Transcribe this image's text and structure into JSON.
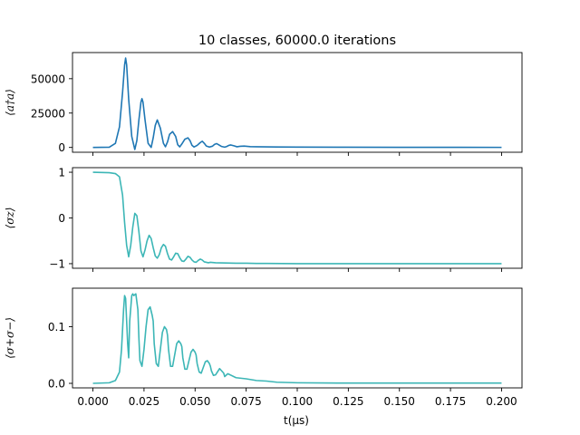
{
  "chart_data": {
    "type": "line",
    "title": "10 classes, 60000.0 iterations",
    "xlabel": "t(μs)",
    "xlim": [
      -0.01,
      0.21
    ],
    "xticks": [
      "0.000",
      "0.025",
      "0.050",
      "0.075",
      "0.100",
      "0.125",
      "0.150",
      "0.175",
      "0.200"
    ],
    "xtick_values": [
      0,
      0.025,
      0.05,
      0.075,
      0.1,
      0.125,
      0.15,
      0.175,
      0.2
    ],
    "grid": false,
    "panels": [
      {
        "ylabel": "⟨a†a⟩",
        "ylim": [
          -3500,
          69000
        ],
        "yticks": [
          "0",
          "25000",
          "50000"
        ],
        "ytick_values": [
          0,
          25000,
          50000
        ],
        "color": "#1f77b4",
        "series": {
          "x": [
            0,
            0.008,
            0.011,
            0.013,
            0.0145,
            0.0155,
            0.016,
            0.0165,
            0.0175,
            0.019,
            0.0205,
            0.0215,
            0.0225,
            0.0235,
            0.024,
            0.0245,
            0.0255,
            0.027,
            0.0285,
            0.0295,
            0.0305,
            0.0315,
            0.033,
            0.0345,
            0.0355,
            0.0365,
            0.0375,
            0.039,
            0.0405,
            0.0415,
            0.0425,
            0.0435,
            0.045,
            0.0465,
            0.0475,
            0.0485,
            0.0495,
            0.051,
            0.0525,
            0.0535,
            0.0545,
            0.0555,
            0.057,
            0.0585,
            0.0595,
            0.0605,
            0.0615,
            0.063,
            0.0645,
            0.0655,
            0.0665,
            0.0675,
            0.069,
            0.0705,
            0.072,
            0.074,
            0.077,
            0.08,
            0.085,
            0.09,
            0.1,
            0.12,
            0.15,
            0.2
          ],
          "y": [
            0,
            200,
            3000,
            15000,
            40000,
            60000,
            65000,
            60000,
            35000,
            8000,
            -1500,
            5000,
            20000,
            33000,
            35500,
            33000,
            20000,
            3000,
            0,
            7000,
            16000,
            20000,
            14000,
            3000,
            500,
            4000,
            9500,
            11500,
            8000,
            2000,
            400,
            2500,
            6000,
            7000,
            5000,
            1500,
            300,
            1500,
            3500,
            4500,
            3000,
            1000,
            300,
            900,
            2200,
            2800,
            2000,
            700,
            200,
            700,
            1500,
            1800,
            1200,
            500,
            800,
            1000,
            600,
            500,
            400,
            350,
            250,
            150,
            80,
            40
          ]
        }
      },
      {
        "ylabel": "⟨σz⟩",
        "ylim": [
          -1.1,
          1.1
        ],
        "yticks": [
          "−1",
          "0",
          "1"
        ],
        "ytick_values": [
          -1,
          0,
          1
        ],
        "color": "#3cb6b6",
        "series": {
          "x": [
            0,
            0.008,
            0.011,
            0.013,
            0.0145,
            0.0155,
            0.0165,
            0.0175,
            0.0185,
            0.0195,
            0.0205,
            0.0215,
            0.0225,
            0.0235,
            0.0245,
            0.0255,
            0.0265,
            0.0275,
            0.0285,
            0.0295,
            0.0305,
            0.0315,
            0.0325,
            0.0335,
            0.0345,
            0.0355,
            0.0365,
            0.0375,
            0.0385,
            0.0395,
            0.0405,
            0.0415,
            0.0425,
            0.0435,
            0.0445,
            0.0455,
            0.0465,
            0.0475,
            0.0485,
            0.0495,
            0.0505,
            0.0515,
            0.0525,
            0.0535,
            0.0545,
            0.0555,
            0.0565,
            0.0575,
            0.06,
            0.065,
            0.07,
            0.075,
            0.08,
            0.085,
            0.1,
            0.15,
            0.2
          ],
          "y": [
            1.0,
            0.99,
            0.97,
            0.9,
            0.5,
            -0.1,
            -0.6,
            -0.85,
            -0.6,
            -0.2,
            0.1,
            0.05,
            -0.3,
            -0.72,
            -0.85,
            -0.7,
            -0.5,
            -0.38,
            -0.45,
            -0.65,
            -0.83,
            -0.88,
            -0.8,
            -0.65,
            -0.58,
            -0.62,
            -0.78,
            -0.9,
            -0.92,
            -0.85,
            -0.77,
            -0.78,
            -0.87,
            -0.94,
            -0.95,
            -0.9,
            -0.84,
            -0.86,
            -0.92,
            -0.96,
            -0.97,
            -0.93,
            -0.9,
            -0.92,
            -0.96,
            -0.97,
            -0.98,
            -0.97,
            -0.98,
            -0.985,
            -0.99,
            -0.99,
            -0.995,
            -0.995,
            -1.0,
            -1.0,
            -1.0
          ]
        }
      },
      {
        "ylabel": "⟨σ+σ−⟩",
        "ylim": [
          -0.008,
          0.168
        ],
        "yticks": [
          "0.0",
          "0.1"
        ],
        "ytick_values": [
          0,
          0.1
        ],
        "color": "#3cb6b6",
        "series": {
          "x": [
            0,
            0.008,
            0.011,
            0.013,
            0.014,
            0.015,
            0.0155,
            0.016,
            0.017,
            0.0175,
            0.018,
            0.019,
            0.0195,
            0.02,
            0.021,
            0.022,
            0.0225,
            0.023,
            0.024,
            0.025,
            0.026,
            0.027,
            0.028,
            0.029,
            0.0295,
            0.03,
            0.031,
            0.032,
            0.033,
            0.034,
            0.035,
            0.036,
            0.0365,
            0.037,
            0.038,
            0.039,
            0.04,
            0.041,
            0.042,
            0.043,
            0.0435,
            0.044,
            0.045,
            0.046,
            0.047,
            0.048,
            0.049,
            0.05,
            0.0505,
            0.051,
            0.052,
            0.053,
            0.054,
            0.055,
            0.056,
            0.057,
            0.0575,
            0.058,
            0.059,
            0.06,
            0.062,
            0.064,
            0.0645,
            0.066,
            0.07,
            0.075,
            0.08,
            0.085,
            0.09,
            0.1,
            0.12,
            0.2
          ],
          "y": [
            0,
            0.001,
            0.005,
            0.02,
            0.06,
            0.13,
            0.155,
            0.15,
            0.07,
            0.045,
            0.11,
            0.155,
            0.158,
            0.155,
            0.158,
            0.13,
            0.08,
            0.04,
            0.03,
            0.06,
            0.1,
            0.13,
            0.135,
            0.12,
            0.11,
            0.07,
            0.035,
            0.03,
            0.06,
            0.09,
            0.1,
            0.095,
            0.085,
            0.06,
            0.03,
            0.03,
            0.05,
            0.07,
            0.075,
            0.07,
            0.065,
            0.045,
            0.025,
            0.025,
            0.04,
            0.055,
            0.06,
            0.055,
            0.05,
            0.035,
            0.02,
            0.018,
            0.028,
            0.038,
            0.04,
            0.035,
            0.03,
            0.022,
            0.014,
            0.015,
            0.026,
            0.018,
            0.012,
            0.017,
            0.01,
            0.008,
            0.005,
            0.004,
            0.002,
            0.001,
            0.0005,
            0.0005
          ]
        }
      }
    ]
  }
}
